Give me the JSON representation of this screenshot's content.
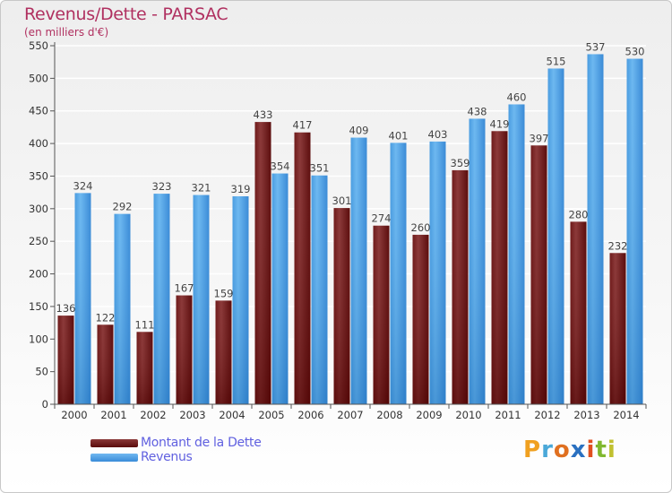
{
  "title": "Revenus/Dette - PARSAC",
  "subtitle": "(en milliers d'€)",
  "logo": {
    "letters": [
      {
        "ch": "P",
        "color": "#f0a020"
      },
      {
        "ch": "r",
        "color": "#4aa8d8"
      },
      {
        "ch": "o",
        "color": "#e07020"
      },
      {
        "ch": "x",
        "color": "#2a70c0"
      },
      {
        "ch": "i",
        "color": "#e05020"
      },
      {
        "ch": "t",
        "color": "#80b830"
      },
      {
        "ch": "i",
        "color": "#c0c030"
      }
    ]
  },
  "colors": {
    "debt_top": "#8a3838",
    "debt_bottom": "#560606",
    "revenue_top": "#6bb6ee",
    "revenue_bottom": "#3688d4",
    "grid": "#ffffff",
    "axis_text": "#333333"
  },
  "chart_data": {
    "type": "bar",
    "title": "Revenus/Dette - PARSAC",
    "ylabel": "(en milliers d'€)",
    "xlabel": "",
    "ylim": [
      0,
      550
    ],
    "yticks": [
      0,
      50,
      100,
      150,
      200,
      250,
      300,
      350,
      400,
      450,
      500,
      550
    ],
    "grid": true,
    "legend_position": "bottom-left",
    "categories": [
      "2000",
      "2001",
      "2002",
      "2003",
      "2004",
      "2005",
      "2006",
      "2007",
      "2008",
      "2009",
      "2010",
      "2011",
      "2012",
      "2013",
      "2014"
    ],
    "series": [
      {
        "name": "Montant de la Dette",
        "values": [
          136,
          122,
          111,
          167,
          159,
          433,
          417,
          301,
          274,
          260,
          359,
          419,
          397,
          280,
          232
        ]
      },
      {
        "name": "Revenus",
        "values": [
          324,
          292,
          323,
          321,
          319,
          354,
          351,
          409,
          401,
          403,
          438,
          460,
          515,
          537,
          530
        ]
      }
    ]
  }
}
